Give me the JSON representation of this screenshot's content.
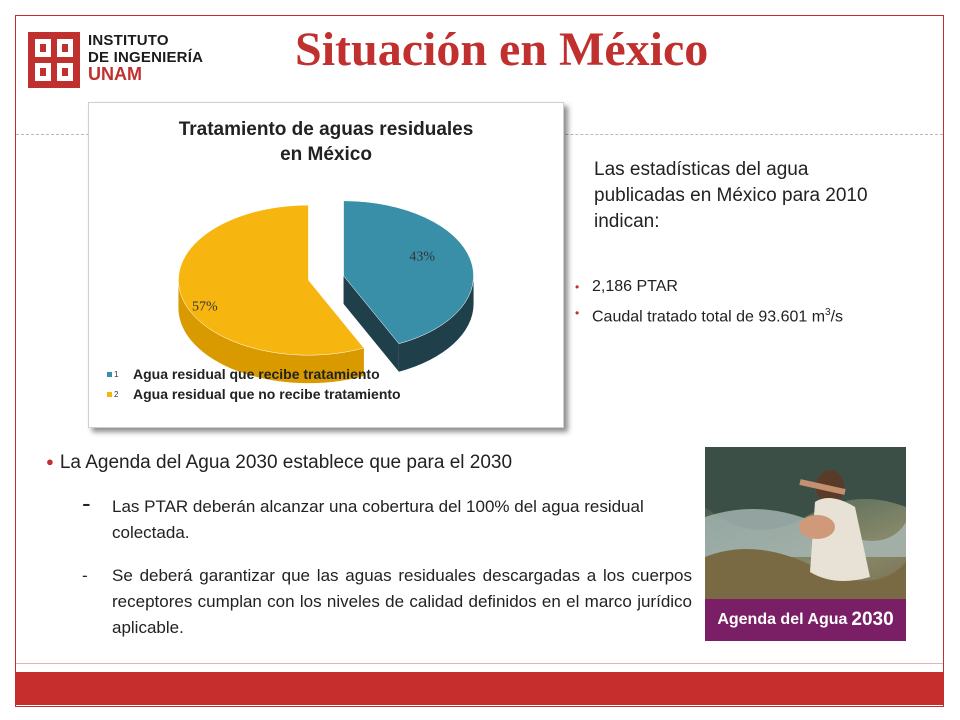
{
  "logo": {
    "line1": "INSTITUTO",
    "line2": "DE INGENIERÍA",
    "line3": "UNAM",
    "color": "#c0302e"
  },
  "slide": {
    "title": "Situación en México",
    "accent": "#c0302e"
  },
  "chart_data": {
    "type": "pie",
    "title": "Tratamiento de aguas residuales en México",
    "title_line1": "Tratamiento de aguas residuales",
    "title_line2": "en México",
    "slices": [
      {
        "legend_num": "1",
        "label": "Agua residual que recibe tratamiento",
        "value": 43,
        "value_label": "43%",
        "color": "#3a8fa8",
        "side_color": "#1f3f4a"
      },
      {
        "legend_num": "2",
        "label": "Agua residual que no recibe tratamiento",
        "value": 57,
        "value_label": "57%",
        "color": "#f7b50f",
        "side_color": "#d99a00"
      }
    ],
    "exploded": true,
    "three_d": true,
    "legend_position": "bottom-left"
  },
  "stats": {
    "intro": "Las estadísticas del agua publicadas en México para 2010 indican:",
    "items": [
      {
        "text": "2,186 PTAR"
      },
      {
        "text_before": "Caudal tratado total de 93.601 m",
        "sup": "3",
        "text_after": "/s"
      }
    ]
  },
  "agenda": {
    "heading": "La Agenda del Agua 2030 establece que para el 2030",
    "points": [
      {
        "dash": "-",
        "text": "Las PTAR deberán alcanzar una cobertura del 100% del agua residual colectada."
      },
      {
        "dash": "-",
        "text": "Se deberá garantizar que las aguas residuales descargadas a los cuerpos receptores cumplan con los niveles de calidad definidos en el marco jurídico aplicable."
      }
    ]
  },
  "photo": {
    "banner_text": "Agenda del Agua",
    "banner_number": "2030",
    "banner_color": "#7a1f66"
  }
}
